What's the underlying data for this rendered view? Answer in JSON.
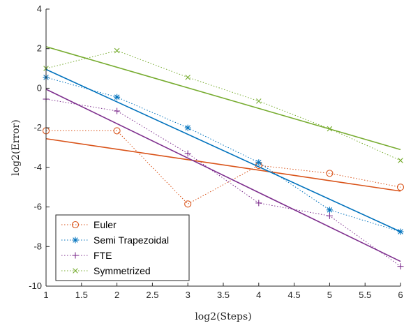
{
  "chart_data": {
    "type": "line",
    "xlabel": "log2(Steps)",
    "ylabel": "log2(Error)",
    "xlim": [
      1,
      6
    ],
    "ylim": [
      -10,
      4
    ],
    "xticks": [
      "1",
      "1.5",
      "2",
      "2.5",
      "3",
      "3.5",
      "4",
      "4.5",
      "5",
      "5.5",
      "6"
    ],
    "yticks": [
      "-10",
      "-8",
      "-6",
      "-4",
      "-2",
      "0",
      "2",
      "4"
    ],
    "grid": false,
    "legend_position": "bottom-left",
    "x": [
      1,
      2,
      3,
      4,
      5,
      6
    ],
    "series": [
      {
        "name": "Euler",
        "color": "#D95319",
        "marker": "circle",
        "style": "dotted",
        "values": [
          -2.15,
          -2.15,
          -5.85,
          -3.9,
          -4.3,
          -5.0
        ],
        "fit": [
          -2.55,
          -5.2
        ]
      },
      {
        "name": "Semi Trapezoidal",
        "color": "#0072BD",
        "marker": "asterisk",
        "style": "dotted",
        "values": [
          0.55,
          -0.45,
          -2.0,
          -3.75,
          -6.15,
          -7.25
        ],
        "fit": [
          0.95,
          -7.25
        ]
      },
      {
        "name": "FTE",
        "color": "#7E2F8E",
        "marker": "plus",
        "style": "dotted",
        "values": [
          -0.55,
          -1.15,
          -3.3,
          -5.8,
          -6.45,
          -9.0
        ],
        "fit": [
          -0.05,
          -8.75
        ]
      },
      {
        "name": "Symmetrized",
        "color": "#77AC30",
        "marker": "cross",
        "style": "dotted",
        "values": [
          1.0,
          1.9,
          0.55,
          -0.65,
          -2.05,
          -3.65
        ],
        "fit": [
          2.1,
          -3.1
        ]
      }
    ]
  }
}
